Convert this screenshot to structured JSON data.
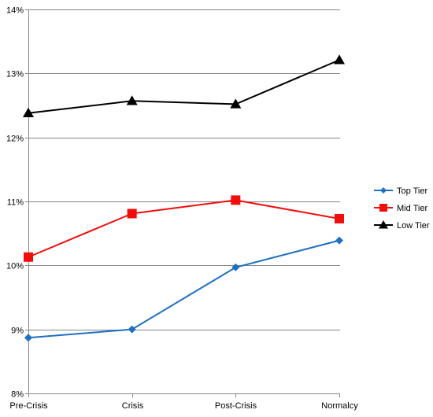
{
  "chart_data": {
    "type": "line",
    "title": "",
    "xlabel": "",
    "ylabel": "",
    "categories": [
      "Pre-Crisis",
      "Crisis",
      "Post-Crisis",
      "Normalcy"
    ],
    "y_ticks": [
      "8%",
      "9%",
      "10%",
      "11%",
      "12%",
      "13%",
      "14%"
    ],
    "ylim": [
      8,
      14
    ],
    "y_unit": "%",
    "grid": true,
    "legend_position": "right",
    "series": [
      {
        "name": "Top Tier",
        "values": [
          8.87,
          9.0,
          9.97,
          10.39
        ],
        "color": "#1F6FC5",
        "marker": "diamond"
      },
      {
        "name": "Mid Tier",
        "values": [
          10.13,
          10.81,
          11.02,
          10.73
        ],
        "color": "#F20D0D",
        "marker": "square"
      },
      {
        "name": "Low Tier",
        "values": [
          12.38,
          12.57,
          12.52,
          13.21
        ],
        "color": "#000000",
        "marker": "triangle"
      }
    ]
  }
}
